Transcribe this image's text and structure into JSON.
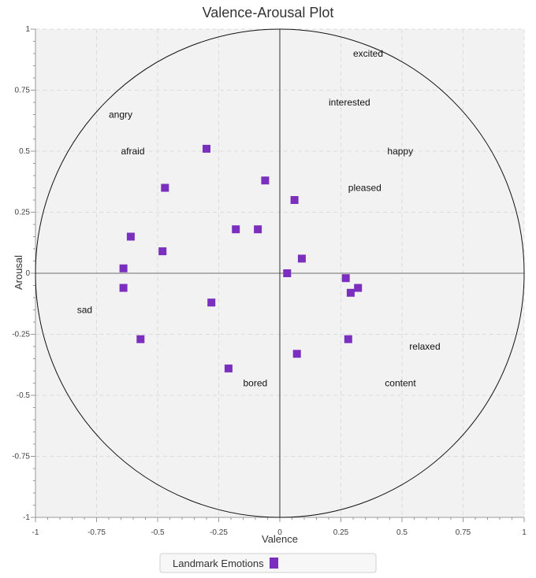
{
  "chart_data": {
    "type": "scatter",
    "title": "Valence-Arousal Plot",
    "xlabel": "Valence",
    "ylabel": "Arousal",
    "xlim": [
      -1,
      1
    ],
    "ylim": [
      -1,
      1
    ],
    "grid": true,
    "x_ticks": [
      -1,
      -0.75,
      -0.5,
      -0.25,
      0,
      0.25,
      0.5,
      0.75,
      1
    ],
    "y_ticks": [
      -1,
      -0.75,
      -0.5,
      -0.25,
      0,
      0.25,
      0.5,
      0.75,
      1
    ],
    "x_tick_labels": [
      "-1",
      "-0.75",
      "-0.5",
      "-0.25",
      "0",
      "0.25",
      "0.5",
      "0.75",
      "1"
    ],
    "y_tick_labels": [
      "-1",
      "-0.75",
      "-0.5",
      "-0.25",
      "0",
      "0.25",
      "0.5",
      "0.75",
      "1"
    ],
    "unit_circle": true,
    "landmarks": [
      {
        "label": "excited",
        "x": 0.3,
        "y": 0.9
      },
      {
        "label": "interested",
        "x": 0.2,
        "y": 0.7
      },
      {
        "label": "angry",
        "x": -0.7,
        "y": 0.65
      },
      {
        "label": "afraid",
        "x": -0.65,
        "y": 0.5
      },
      {
        "label": "happy",
        "x": 0.44,
        "y": 0.5
      },
      {
        "label": "pleased",
        "x": 0.28,
        "y": 0.35
      },
      {
        "label": "sad",
        "x": -0.83,
        "y": -0.15
      },
      {
        "label": "relaxed",
        "x": 0.53,
        "y": -0.3
      },
      {
        "label": "bored",
        "x": -0.15,
        "y": -0.45
      },
      {
        "label": "content",
        "x": 0.43,
        "y": -0.45
      }
    ],
    "series": [
      {
        "name": "Landmark Emotions",
        "color": "#7b2fbe",
        "marker": "square",
        "points": [
          {
            "x": -0.3,
            "y": 0.51
          },
          {
            "x": -0.47,
            "y": 0.35
          },
          {
            "x": -0.06,
            "y": 0.38
          },
          {
            "x": 0.06,
            "y": 0.3
          },
          {
            "x": -0.61,
            "y": 0.15
          },
          {
            "x": -0.18,
            "y": 0.18
          },
          {
            "x": -0.09,
            "y": 0.18
          },
          {
            "x": -0.48,
            "y": 0.09
          },
          {
            "x": 0.09,
            "y": 0.06
          },
          {
            "x": -0.64,
            "y": 0.02
          },
          {
            "x": 0.03,
            "y": 0.0
          },
          {
            "x": 0.27,
            "y": -0.02
          },
          {
            "x": -0.64,
            "y": -0.06
          },
          {
            "x": 0.32,
            "y": -0.06
          },
          {
            "x": 0.29,
            "y": -0.08
          },
          {
            "x": -0.28,
            "y": -0.12
          },
          {
            "x": -0.57,
            "y": -0.27
          },
          {
            "x": 0.28,
            "y": -0.27
          },
          {
            "x": 0.07,
            "y": -0.33
          },
          {
            "x": -0.21,
            "y": -0.39
          }
        ]
      }
    ],
    "legend": {
      "position": "bottom-left",
      "label": "Landmark Emotions"
    }
  }
}
